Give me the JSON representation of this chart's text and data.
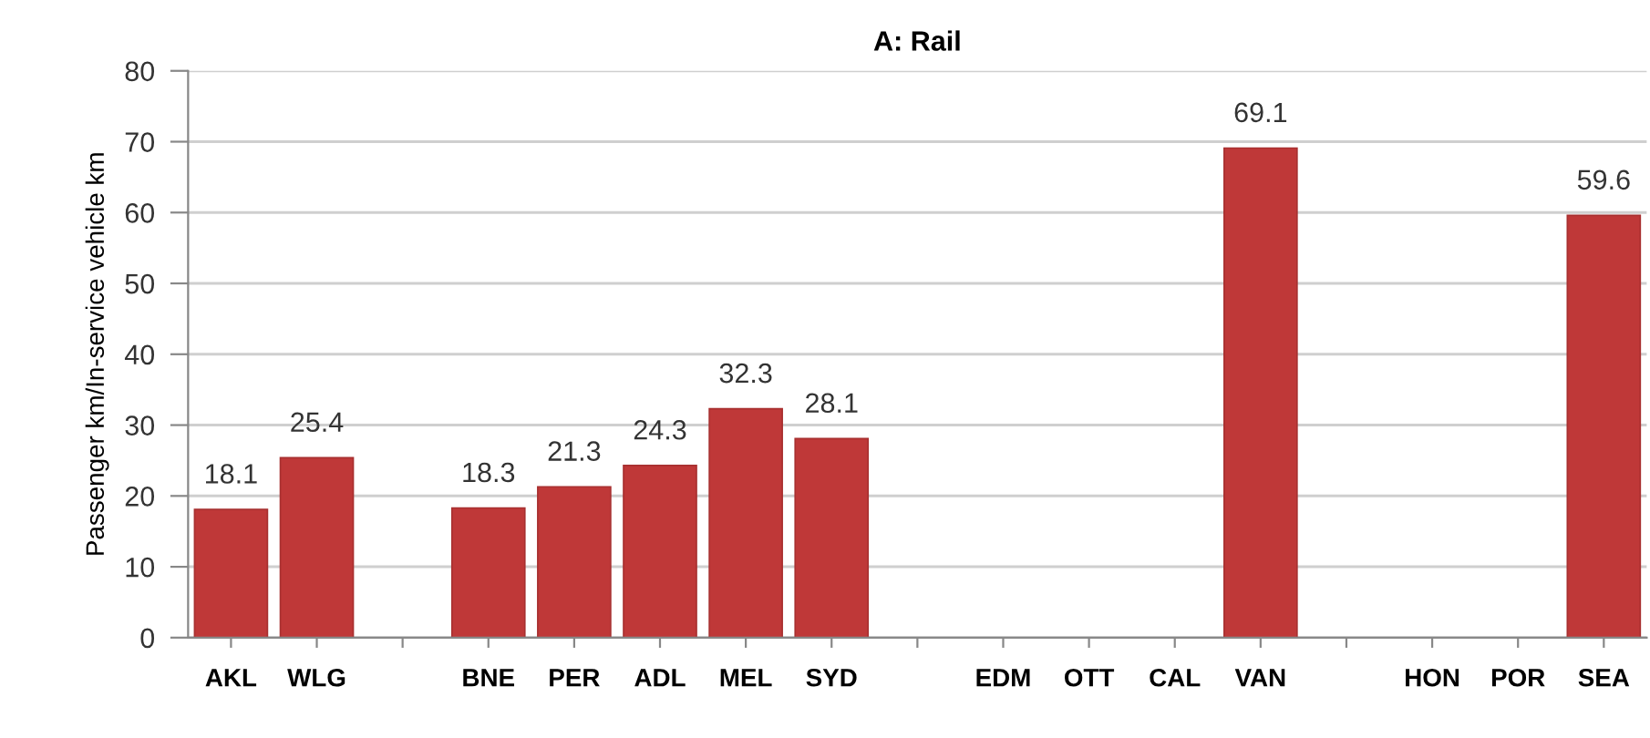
{
  "chart_data": {
    "type": "bar",
    "title": "A: Rail",
    "ylabel": "Passenger km/In-service vehicle km",
    "categories": [
      "AKL",
      "WLG",
      null,
      "BNE",
      "PER",
      "ADL",
      "MEL",
      "SYD",
      null,
      "EDM",
      "OTT",
      "CAL",
      "VAN",
      null,
      "HON",
      "POR",
      "SEA"
    ],
    "values": [
      18.1,
      25.4,
      null,
      18.3,
      21.3,
      24.3,
      32.3,
      28.1,
      null,
      null,
      null,
      null,
      69.1,
      null,
      null,
      null,
      59.6
    ],
    "color": "#bf3838",
    "ylim": [
      0,
      80
    ],
    "yticks": [
      0,
      10,
      20,
      30,
      40,
      50,
      60,
      70,
      80
    ],
    "grid": "y",
    "data_labels": true
  }
}
